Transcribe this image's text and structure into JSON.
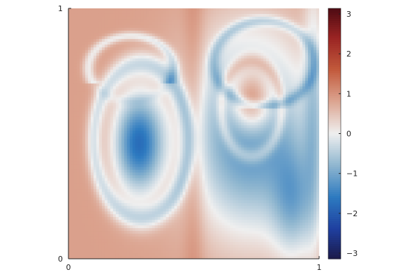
{
  "chart_data": {
    "type": "heatmap",
    "title": "",
    "xlabel": "",
    "ylabel": "",
    "xlim": [
      0,
      1
    ],
    "ylim": [
      0,
      1
    ],
    "x_ticks": [
      "0",
      "1"
    ],
    "y_ticks": [
      "0",
      "1"
    ],
    "colorbar": {
      "range": [
        -3.14,
        3.14
      ],
      "ticks": [
        "3",
        "2",
        "1",
        "0",
        "−1",
        "−2",
        "−3"
      ],
      "tick_values": [
        3,
        2,
        1,
        0,
        -1,
        -2,
        -3
      ],
      "colormap_stops": [
        {
          "value": -3.14,
          "color": "#1c1a4a"
        },
        {
          "value": -2.4,
          "color": "#1f3f9f"
        },
        {
          "value": -1.6,
          "color": "#2d7ac0"
        },
        {
          "value": -0.8,
          "color": "#8fb6cf"
        },
        {
          "value": 0.0,
          "color": "#efefef"
        },
        {
          "value": 0.8,
          "color": "#dca591"
        },
        {
          "value": 1.6,
          "color": "#c25a3c"
        },
        {
          "value": 2.4,
          "color": "#9a2423"
        },
        {
          "value": 3.14,
          "color": "#4e0b13"
        }
      ]
    },
    "field_features": [
      {
        "feature": "background",
        "value": 0.85
      },
      {
        "feature": "left-vortex-core",
        "x": 0.28,
        "y": 0.46,
        "value": -1.9
      },
      {
        "feature": "right-vortex-trough",
        "x": 0.9,
        "y": 0.18,
        "value": -1.8
      },
      {
        "feature": "right-vortex-mid",
        "x": 0.68,
        "y": 0.62,
        "value": -1.1
      },
      {
        "feature": "right-positive-patch",
        "x": 0.73,
        "y": 0.62,
        "value": 0.6
      },
      {
        "feature": "center-dividing-band",
        "x": 0.5,
        "value": 1.2
      }
    ],
    "grid": false,
    "legend": "none"
  }
}
